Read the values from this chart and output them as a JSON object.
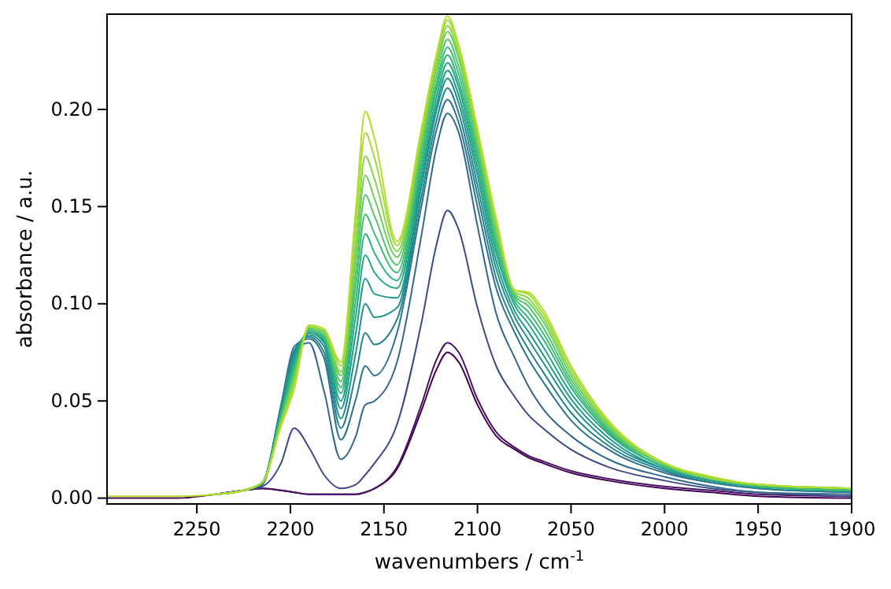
{
  "chart_data": {
    "type": "line",
    "xlabel": "wavenumbers / cm$^{-1}$",
    "ylabel": "absorbance / a.u.",
    "x": [
      2298,
      2260,
      2240,
      2225,
      2215,
      2205,
      2198,
      2190,
      2182,
      2173,
      2165,
      2160,
      2155,
      2143,
      2130,
      2122,
      2116,
      2110,
      2100,
      2090,
      2080,
      2073,
      2065,
      2050,
      2030,
      2000,
      1975,
      1950,
      1900
    ],
    "xlim": [
      2298,
      1900
    ],
    "xticks": [
      2250,
      2200,
      2150,
      2100,
      2050,
      2000,
      1950,
      1900
    ],
    "ylim": [
      -0.003,
      0.249
    ],
    "yticks": [
      {
        "value": 0,
        "label": "0.00"
      },
      {
        "value": 0.05,
        "label": "0.05"
      },
      {
        "value": 0.1,
        "label": "0.10"
      },
      {
        "value": 0.15,
        "label": "0.15"
      },
      {
        "value": 0.2,
        "label": "0.20"
      }
    ],
    "series": [
      {
        "color": "#440154",
        "values": [
          0.0,
          0.0,
          0.002,
          0.004,
          0.005,
          0.004,
          0.003,
          0.002,
          0.002,
          0.002,
          0.002,
          0.003,
          0.005,
          0.015,
          0.045,
          0.066,
          0.075,
          0.07,
          0.048,
          0.032,
          0.025,
          0.021,
          0.018,
          0.013,
          0.009,
          0.005,
          0.003,
          0.001,
          0.0
        ]
      },
      {
        "color": "#471164",
        "values": [
          null,
          null,
          0.002,
          0.004,
          0.005,
          0.004,
          0.003,
          0.002,
          0.002,
          0.002,
          0.002,
          0.003,
          0.005,
          0.016,
          0.048,
          0.071,
          0.08,
          0.075,
          0.051,
          0.034,
          0.026,
          0.022,
          0.019,
          0.014,
          0.01,
          0.006,
          0.004,
          0.002,
          0.001
        ]
      },
      {
        "color": "#3e4989",
        "values": [
          null,
          null,
          0.002,
          0.004,
          0.006,
          0.018,
          0.036,
          0.026,
          0.012,
          0.005,
          0.007,
          0.012,
          0.018,
          0.038,
          0.09,
          0.13,
          0.148,
          0.138,
          0.098,
          0.068,
          0.052,
          0.043,
          0.036,
          0.025,
          0.016,
          0.009,
          0.005,
          0.003,
          0.001
        ]
      },
      {
        "color": "#31688e",
        "values": [
          null,
          null,
          0.002,
          0.004,
          0.007,
          0.045,
          0.075,
          0.08,
          0.055,
          0.02,
          0.032,
          0.048,
          0.05,
          0.07,
          0.135,
          0.18,
          0.198,
          0.188,
          0.14,
          0.095,
          0.072,
          0.058,
          0.046,
          0.032,
          0.02,
          0.011,
          0.006,
          0.003,
          0.002
        ]
      },
      {
        "color": "#2c728e",
        "values": [
          null,
          null,
          0.002,
          0.004,
          0.008,
          0.048,
          0.078,
          0.082,
          0.072,
          0.03,
          0.051,
          0.068,
          0.063,
          0.085,
          0.15,
          0.189,
          0.205,
          0.193,
          0.15,
          0.108,
          0.085,
          0.072,
          0.06,
          0.04,
          0.025,
          0.013,
          0.008,
          0.005,
          0.003
        ]
      },
      {
        "color": "#26818e",
        "values": [
          null,
          null,
          0.002,
          0.004,
          0.008,
          0.047,
          0.076,
          0.083,
          0.075,
          0.036,
          0.064,
          0.085,
          0.079,
          0.092,
          0.155,
          0.194,
          0.211,
          0.198,
          0.156,
          0.113,
          0.089,
          0.077,
          0.065,
          0.044,
          0.027,
          0.014,
          0.008,
          0.005,
          0.003
        ]
      },
      {
        "color": "#21908d",
        "values": [
          null,
          null,
          0.002,
          0.004,
          0.008,
          0.046,
          0.074,
          0.084,
          0.078,
          0.041,
          0.075,
          0.1,
          0.093,
          0.098,
          0.16,
          0.199,
          0.216,
          0.203,
          0.161,
          0.118,
          0.093,
          0.082,
          0.07,
          0.048,
          0.029,
          0.015,
          0.009,
          0.006,
          0.004
        ]
      },
      {
        "color": "#1f9a8a",
        "values": [
          null,
          null,
          0.002,
          0.004,
          0.008,
          0.045,
          0.072,
          0.085,
          0.08,
          0.046,
          0.085,
          0.113,
          0.105,
          0.103,
          0.164,
          0.202,
          0.22,
          0.207,
          0.166,
          0.122,
          0.096,
          0.086,
          0.074,
          0.051,
          0.031,
          0.015,
          0.009,
          0.006,
          0.004
        ]
      },
      {
        "color": "#22a785",
        "values": [
          null,
          null,
          0.002,
          0.004,
          0.008,
          0.044,
          0.07,
          0.086,
          0.081,
          0.05,
          0.094,
          0.125,
          0.116,
          0.108,
          0.168,
          0.206,
          0.224,
          0.211,
          0.17,
          0.126,
          0.099,
          0.09,
          0.078,
          0.054,
          0.033,
          0.016,
          0.01,
          0.006,
          0.004
        ]
      },
      {
        "color": "#2eb37c",
        "values": [
          null,
          null,
          0.002,
          0.004,
          0.008,
          0.043,
          0.068,
          0.086,
          0.082,
          0.054,
          0.102,
          0.136,
          0.126,
          0.112,
          0.172,
          0.21,
          0.228,
          0.214,
          0.174,
          0.129,
          0.101,
          0.093,
          0.082,
          0.057,
          0.034,
          0.016,
          0.01,
          0.006,
          0.004
        ]
      },
      {
        "color": "#3fbc73",
        "values": [
          null,
          null,
          0.002,
          0.004,
          0.008,
          0.042,
          0.066,
          0.087,
          0.083,
          0.057,
          0.11,
          0.146,
          0.136,
          0.116,
          0.176,
          0.213,
          0.232,
          0.218,
          0.177,
          0.132,
          0.103,
          0.096,
          0.085,
          0.059,
          0.035,
          0.017,
          0.01,
          0.006,
          0.004
        ]
      },
      {
        "color": "#54c568",
        "values": [
          null,
          null,
          0.002,
          0.004,
          0.008,
          0.041,
          0.064,
          0.087,
          0.084,
          0.06,
          0.117,
          0.156,
          0.145,
          0.12,
          0.179,
          0.217,
          0.236,
          0.222,
          0.18,
          0.135,
          0.104,
          0.099,
          0.088,
          0.061,
          0.036,
          0.017,
          0.01,
          0.007,
          0.005
        ]
      },
      {
        "color": "#6ccd5a",
        "values": [
          null,
          null,
          0.002,
          0.004,
          0.008,
          0.04,
          0.062,
          0.088,
          0.085,
          0.063,
          0.125,
          0.166,
          0.154,
          0.124,
          0.182,
          0.221,
          0.24,
          0.226,
          0.183,
          0.138,
          0.105,
          0.101,
          0.091,
          0.063,
          0.037,
          0.017,
          0.01,
          0.007,
          0.005
        ]
      },
      {
        "color": "#86d549",
        "values": [
          null,
          null,
          0.002,
          0.004,
          0.008,
          0.039,
          0.06,
          0.088,
          0.086,
          0.065,
          0.132,
          0.176,
          0.164,
          0.127,
          0.185,
          0.224,
          0.243,
          0.228,
          0.186,
          0.14,
          0.106,
          0.103,
          0.093,
          0.065,
          0.038,
          0.018,
          0.01,
          0.007,
          0.005
        ]
      },
      {
        "color": "#a0da39",
        "values": [
          null,
          null,
          0.002,
          0.004,
          0.008,
          0.038,
          0.058,
          0.089,
          0.087,
          0.068,
          0.141,
          0.188,
          0.175,
          0.13,
          0.188,
          0.226,
          0.246,
          0.231,
          0.188,
          0.142,
          0.107,
          0.105,
          0.095,
          0.067,
          0.039,
          0.018,
          0.011,
          0.007,
          0.005
        ]
      },
      {
        "color": "#b5de2b",
        "values": [
          0.001,
          0.001,
          0.002,
          0.004,
          0.008,
          0.037,
          0.056,
          0.089,
          0.087,
          0.07,
          0.149,
          0.199,
          0.185,
          0.132,
          0.19,
          0.228,
          0.248,
          0.233,
          0.19,
          0.144,
          0.107,
          0.106,
          0.097,
          0.068,
          0.04,
          0.018,
          0.011,
          0.007,
          0.005
        ]
      }
    ]
  }
}
